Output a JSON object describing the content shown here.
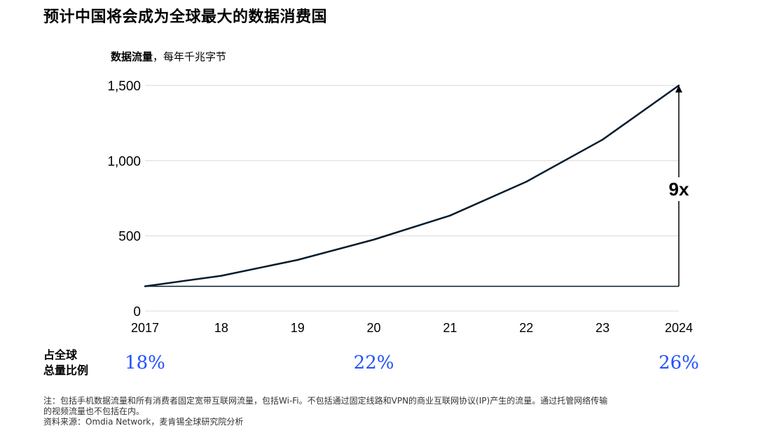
{
  "title": "预计中国将会成为全球最大的数据消费国",
  "unit_bold": "数据流量",
  "unit_rest": "，每年千兆字节",
  "chart_data": {
    "type": "line",
    "x": [
      "2017",
      "18",
      "19",
      "20",
      "21",
      "22",
      "23",
      "2024"
    ],
    "series": [
      {
        "values": [
          165,
          235,
          340,
          475,
          635,
          860,
          1140,
          1500
        ]
      }
    ],
    "ylim": [
      0,
      1500
    ],
    "yticks": [
      0,
      500,
      1000,
      1500
    ],
    "ytick_labels": [
      "0",
      "500",
      "1,000",
      "1,500"
    ],
    "annotation": "9x",
    "grid": true,
    "line_color": "#051c2c",
    "grid_color": "#d9d9d9"
  },
  "share": {
    "label_line1": "占全球",
    "label_line2": "总量比例",
    "values": [
      {
        "year": "2017",
        "text": "18%"
      },
      {
        "year": "20",
        "text": "22%"
      },
      {
        "year": "2024",
        "text": "26%"
      }
    ],
    "color": "#2251ff"
  },
  "note_line1": "注：包括手机数据流量和所有消费者固定宽带互联网流量，包括Wi-Fi。不包括通过固定线路和VPN的商业互联网协议(IP)产生的流量。通过托管网络传输",
  "note_line2": "的视频流量也不包括在内。",
  "source": "资料来源：Omdia Network，麦肯锡全球研究院分析"
}
